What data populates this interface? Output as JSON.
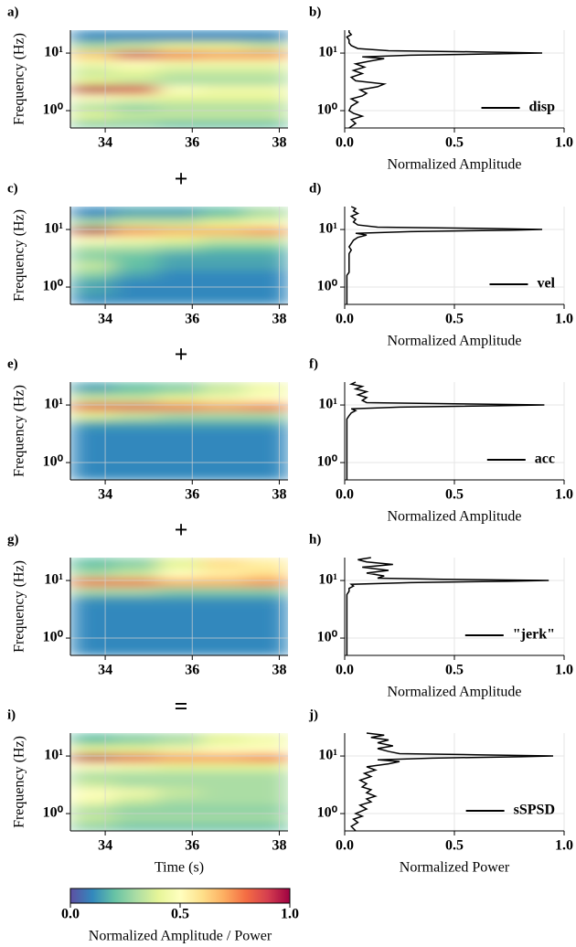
{
  "operators": [
    "+",
    "+",
    "+",
    "="
  ],
  "chart_data": [
    {
      "type": "heatmap",
      "label": "a)",
      "ylabel": "Frequency (Hz)",
      "ylog": true,
      "grid": true,
      "xlim": [
        33.2,
        38.2
      ],
      "ylim": [
        0.5,
        25
      ],
      "xticks": [
        34,
        36,
        38
      ],
      "yticks": [
        {
          "value": 1,
          "label": "10⁰"
        },
        {
          "value": 10,
          "label": "10¹"
        }
      ],
      "x_edges": [
        33.2,
        34.2,
        35.2,
        36.2,
        37.2,
        38.2
      ],
      "y_edges": [
        0.5,
        0.7,
        1,
        1.4,
        2,
        2.8,
        4,
        5.6,
        8,
        11,
        16,
        25
      ],
      "z": [
        [
          0.25,
          0.25,
          0.2,
          0.2,
          0.2
        ],
        [
          0.4,
          0.35,
          0.35,
          0.35,
          0.35
        ],
        [
          0.3,
          0.25,
          0.3,
          0.3,
          0.3
        ],
        [
          0.5,
          0.45,
          0.4,
          0.4,
          0.4
        ],
        [
          0.95,
          0.9,
          0.5,
          0.45,
          0.45
        ],
        [
          0.4,
          0.35,
          0.3,
          0.3,
          0.3
        ],
        [
          0.35,
          0.4,
          0.35,
          0.35,
          0.35
        ],
        [
          0.45,
          0.5,
          0.45,
          0.45,
          0.45
        ],
        [
          0.65,
          0.9,
          0.8,
          0.75,
          0.75
        ],
        [
          0.3,
          0.35,
          0.4,
          0.4,
          0.35
        ],
        [
          0.1,
          0.1,
          0.1,
          0.1,
          0.1
        ]
      ]
    },
    {
      "type": "line",
      "label": "b)",
      "xlabel": "Normalized Amplitude",
      "ylog": true,
      "grid": true,
      "legend": "lower right",
      "xlim": [
        0,
        1
      ],
      "ylim": [
        0.5,
        25
      ],
      "xticks": [
        {
          "value": 0,
          "label": "0.0"
        },
        0.5,
        {
          "value": 1,
          "label": "1.0"
        }
      ],
      "yticks": [
        {
          "value": 1,
          "label": "10⁰"
        },
        {
          "value": 10,
          "label": "10¹"
        }
      ],
      "y": [
        0.5,
        0.6,
        0.7,
        0.8,
        0.9,
        1.0,
        1.2,
        1.4,
        1.6,
        1.8,
        2.0,
        2.3,
        2.6,
        2.9,
        3.3,
        3.8,
        4.4,
        5,
        5.7,
        6.5,
        7.3,
        8,
        8.6,
        9.2,
        9.7,
        10,
        10.5,
        11,
        12,
        13.5,
        15,
        17,
        19,
        21,
        23,
        25
      ],
      "series": [
        {
          "name": "disp",
          "color": "#000000",
          "values": [
            0.02,
            0.05,
            0.03,
            0.08,
            0.04,
            0.02,
            0.03,
            0.06,
            0.03,
            0.08,
            0.1,
            0.07,
            0.15,
            0.18,
            0.05,
            0.03,
            0.08,
            0.04,
            0.09,
            0.05,
            0.12,
            0.18,
            0.08,
            0.3,
            0.7,
            0.9,
            0.6,
            0.2,
            0.06,
            0.03,
            0.02,
            0.02,
            0.01,
            0.03,
            0.02,
            0.02
          ]
        }
      ]
    },
    {
      "type": "heatmap",
      "label": "c)",
      "ylabel": "Frequency (Hz)",
      "ylog": true,
      "grid": true,
      "xlim": [
        33.2,
        38.2
      ],
      "ylim": [
        0.5,
        25
      ],
      "xticks": [
        34,
        36,
        38
      ],
      "yticks": [
        {
          "value": 1,
          "label": "10⁰"
        },
        {
          "value": 10,
          "label": "10¹"
        }
      ],
      "x_edges": [
        33.2,
        34.2,
        35.2,
        36.2,
        37.2,
        38.2
      ],
      "y_edges": [
        0.5,
        0.7,
        1,
        1.4,
        2,
        2.8,
        4,
        5.6,
        8,
        11,
        16,
        25
      ],
      "z": [
        [
          0.1,
          0.1,
          0.1,
          0.1,
          0.1
        ],
        [
          0.15,
          0.1,
          0.1,
          0.1,
          0.1
        ],
        [
          0.15,
          0.1,
          0.1,
          0.1,
          0.1
        ],
        [
          0.25,
          0.15,
          0.1,
          0.1,
          0.1
        ],
        [
          0.35,
          0.2,
          0.15,
          0.15,
          0.15
        ],
        [
          0.25,
          0.2,
          0.15,
          0.15,
          0.15
        ],
        [
          0.3,
          0.3,
          0.25,
          0.2,
          0.2
        ],
        [
          0.5,
          0.45,
          0.4,
          0.35,
          0.35
        ],
        [
          0.95,
          0.75,
          0.7,
          0.7,
          0.75
        ],
        [
          0.3,
          0.35,
          0.35,
          0.4,
          0.45
        ],
        [
          0.1,
          0.15,
          0.15,
          0.2,
          0.3
        ]
      ]
    },
    {
      "type": "line",
      "label": "d)",
      "xlabel": "Normalized Amplitude",
      "ylog": true,
      "grid": true,
      "legend": "lower right",
      "xlim": [
        0,
        1
      ],
      "ylim": [
        0.5,
        25
      ],
      "xticks": [
        {
          "value": 0,
          "label": "0.0"
        },
        0.5,
        {
          "value": 1,
          "label": "1.0"
        }
      ],
      "yticks": [
        {
          "value": 1,
          "label": "10⁰"
        },
        {
          "value": 10,
          "label": "10¹"
        }
      ],
      "y": [
        0.5,
        0.6,
        0.7,
        0.8,
        0.9,
        1.0,
        1.2,
        1.4,
        1.6,
        1.8,
        2.0,
        2.3,
        2.6,
        2.9,
        3.3,
        3.8,
        4.4,
        5,
        5.7,
        6.5,
        7.3,
        8,
        8.6,
        9.2,
        9.7,
        10,
        10.5,
        11,
        12,
        13.5,
        15,
        17,
        19,
        21,
        23,
        25
      ],
      "series": [
        {
          "name": "vel",
          "color": "#000000",
          "values": [
            0.01,
            0.01,
            0.01,
            0.01,
            0.01,
            0.01,
            0.01,
            0.01,
            0.01,
            0.02,
            0.02,
            0.02,
            0.02,
            0.02,
            0.02,
            0.02,
            0.03,
            0.02,
            0.03,
            0.04,
            0.06,
            0.1,
            0.05,
            0.3,
            0.75,
            0.9,
            0.6,
            0.15,
            0.06,
            0.04,
            0.05,
            0.03,
            0.06,
            0.04,
            0.05,
            0.03
          ]
        }
      ]
    },
    {
      "type": "heatmap",
      "label": "e)",
      "ylabel": "Frequency (Hz)",
      "ylog": true,
      "grid": true,
      "xlim": [
        33.2,
        38.2
      ],
      "ylim": [
        0.5,
        25
      ],
      "xticks": [
        34,
        36,
        38
      ],
      "yticks": [
        {
          "value": 1,
          "label": "10⁰"
        },
        {
          "value": 10,
          "label": "10¹"
        }
      ],
      "x_edges": [
        33.2,
        34.2,
        35.2,
        36.2,
        37.2,
        38.2
      ],
      "y_edges": [
        0.5,
        0.7,
        1,
        1.4,
        2,
        2.8,
        4,
        5.6,
        8,
        11,
        16,
        25
      ],
      "z": [
        [
          0.1,
          0.1,
          0.1,
          0.1,
          0.1
        ],
        [
          0.1,
          0.1,
          0.1,
          0.1,
          0.1
        ],
        [
          0.1,
          0.1,
          0.1,
          0.1,
          0.1
        ],
        [
          0.1,
          0.1,
          0.1,
          0.1,
          0.1
        ],
        [
          0.1,
          0.1,
          0.1,
          0.1,
          0.1
        ],
        [
          0.1,
          0.1,
          0.1,
          0.1,
          0.1
        ],
        [
          0.15,
          0.15,
          0.15,
          0.15,
          0.15
        ],
        [
          0.4,
          0.35,
          0.3,
          0.3,
          0.3
        ],
        [
          0.85,
          0.85,
          0.8,
          0.75,
          0.8
        ],
        [
          0.35,
          0.35,
          0.4,
          0.45,
          0.5
        ],
        [
          0.15,
          0.2,
          0.25,
          0.35,
          0.45
        ]
      ]
    },
    {
      "type": "line",
      "label": "f)",
      "xlabel": "Normalized Amplitude",
      "ylog": true,
      "grid": true,
      "legend": "lower right",
      "xlim": [
        0,
        1
      ],
      "ylim": [
        0.5,
        25
      ],
      "xticks": [
        {
          "value": 0,
          "label": "0.0"
        },
        0.5,
        {
          "value": 1,
          "label": "1.0"
        }
      ],
      "yticks": [
        {
          "value": 1,
          "label": "10⁰"
        },
        {
          "value": 10,
          "label": "10¹"
        }
      ],
      "y": [
        0.5,
        0.6,
        0.7,
        0.8,
        0.9,
        1.0,
        1.2,
        1.4,
        1.6,
        1.8,
        2.0,
        2.3,
        2.6,
        2.9,
        3.3,
        3.8,
        4.4,
        5,
        5.7,
        6.5,
        7.3,
        8,
        8.6,
        9.2,
        9.7,
        10,
        10.5,
        11,
        12,
        13.5,
        15,
        17,
        19,
        21,
        23,
        25
      ],
      "series": [
        {
          "name": "acc",
          "color": "#000000",
          "values": [
            0.01,
            0.01,
            0.01,
            0.01,
            0.01,
            0.01,
            0.01,
            0.01,
            0.01,
            0.01,
            0.01,
            0.01,
            0.01,
            0.01,
            0.01,
            0.01,
            0.01,
            0.01,
            0.01,
            0.02,
            0.03,
            0.05,
            0.03,
            0.25,
            0.7,
            0.91,
            0.5,
            0.1,
            0.08,
            0.1,
            0.06,
            0.1,
            0.05,
            0.08,
            0.03,
            0.05
          ]
        }
      ]
    },
    {
      "type": "heatmap",
      "label": "g)",
      "ylabel": "Frequency (Hz)",
      "ylog": true,
      "grid": true,
      "xlim": [
        33.2,
        38.2
      ],
      "ylim": [
        0.5,
        25
      ],
      "xticks": [
        34,
        36,
        38
      ],
      "yticks": [
        {
          "value": 1,
          "label": "10⁰"
        },
        {
          "value": 10,
          "label": "10¹"
        }
      ],
      "x_edges": [
        33.2,
        34.2,
        35.2,
        36.2,
        37.2,
        38.2
      ],
      "y_edges": [
        0.5,
        0.7,
        1,
        1.4,
        2,
        2.8,
        4,
        5.6,
        8,
        11,
        16,
        25
      ],
      "z": [
        [
          0.1,
          0.1,
          0.1,
          0.1,
          0.1
        ],
        [
          0.1,
          0.1,
          0.1,
          0.1,
          0.1
        ],
        [
          0.1,
          0.1,
          0.1,
          0.1,
          0.1
        ],
        [
          0.1,
          0.1,
          0.1,
          0.1,
          0.1
        ],
        [
          0.1,
          0.1,
          0.1,
          0.1,
          0.1
        ],
        [
          0.1,
          0.1,
          0.1,
          0.1,
          0.1
        ],
        [
          0.12,
          0.12,
          0.12,
          0.12,
          0.12
        ],
        [
          0.3,
          0.3,
          0.25,
          0.25,
          0.25
        ],
        [
          0.8,
          0.8,
          0.7,
          0.7,
          0.75
        ],
        [
          0.3,
          0.35,
          0.5,
          0.55,
          0.6
        ],
        [
          0.2,
          0.25,
          0.4,
          0.6,
          0.55
        ]
      ]
    },
    {
      "type": "line",
      "label": "h)",
      "xlabel": "Normalized Amplitude",
      "ylog": true,
      "grid": true,
      "legend": "lower right",
      "xlim": [
        0,
        1
      ],
      "ylim": [
        0.5,
        25
      ],
      "xticks": [
        {
          "value": 0,
          "label": "0.0"
        },
        0.5,
        {
          "value": 1,
          "label": "1.0"
        }
      ],
      "yticks": [
        {
          "value": 1,
          "label": "10⁰"
        },
        {
          "value": 10,
          "label": "10¹"
        }
      ],
      "y": [
        0.5,
        0.6,
        0.7,
        0.8,
        0.9,
        1.0,
        1.2,
        1.4,
        1.6,
        1.8,
        2.0,
        2.3,
        2.6,
        2.9,
        3.3,
        3.8,
        4.4,
        5,
        5.7,
        6.5,
        7.3,
        8,
        8.6,
        9.2,
        9.7,
        10,
        10.5,
        11,
        12,
        13.5,
        15,
        17,
        19,
        21,
        23,
        25
      ],
      "series": [
        {
          "name": "\"jerk\"",
          "color": "#000000",
          "values": [
            0.01,
            0.01,
            0.01,
            0.01,
            0.01,
            0.01,
            0.01,
            0.01,
            0.01,
            0.01,
            0.01,
            0.01,
            0.01,
            0.01,
            0.01,
            0.01,
            0.01,
            0.01,
            0.01,
            0.02,
            0.02,
            0.04,
            0.03,
            0.3,
            0.75,
            0.93,
            0.45,
            0.15,
            0.18,
            0.1,
            0.2,
            0.08,
            0.22,
            0.1,
            0.06,
            0.12
          ]
        }
      ]
    },
    {
      "type": "heatmap",
      "label": "i)",
      "ylabel": "Frequency (Hz)",
      "xlabel": "Time (s)",
      "ylog": true,
      "grid": true,
      "xlim": [
        33.2,
        38.2
      ],
      "ylim": [
        0.5,
        25
      ],
      "xticks": [
        34,
        36,
        38
      ],
      "yticks": [
        {
          "value": 1,
          "label": "10⁰"
        },
        {
          "value": 10,
          "label": "10¹"
        }
      ],
      "x_edges": [
        33.2,
        34.2,
        35.2,
        36.2,
        37.2,
        38.2
      ],
      "y_edges": [
        0.5,
        0.7,
        1,
        1.4,
        2,
        2.8,
        4,
        5.6,
        8,
        11,
        16,
        25
      ],
      "z": [
        [
          0.25,
          0.2,
          0.2,
          0.2,
          0.2
        ],
        [
          0.35,
          0.3,
          0.3,
          0.3,
          0.3
        ],
        [
          0.3,
          0.25,
          0.25,
          0.25,
          0.25
        ],
        [
          0.45,
          0.35,
          0.3,
          0.3,
          0.3
        ],
        [
          0.5,
          0.45,
          0.35,
          0.3,
          0.3
        ],
        [
          0.35,
          0.3,
          0.3,
          0.3,
          0.3
        ],
        [
          0.3,
          0.3,
          0.3,
          0.3,
          0.3
        ],
        [
          0.5,
          0.45,
          0.4,
          0.4,
          0.4
        ],
        [
          0.95,
          0.85,
          0.75,
          0.75,
          0.8
        ],
        [
          0.4,
          0.4,
          0.45,
          0.5,
          0.5
        ],
        [
          0.2,
          0.25,
          0.3,
          0.4,
          0.45
        ]
      ]
    },
    {
      "type": "line",
      "label": "j)",
      "xlabel": "Normalized Power",
      "ylog": true,
      "grid": true,
      "legend": "lower right",
      "xlim": [
        0,
        1
      ],
      "ylim": [
        0.5,
        25
      ],
      "xticks": [
        {
          "value": 0,
          "label": "0.0"
        },
        0.5,
        {
          "value": 1,
          "label": "1.0"
        }
      ],
      "yticks": [
        {
          "value": 1,
          "label": "10⁰"
        },
        {
          "value": 10,
          "label": "10¹"
        }
      ],
      "y": [
        0.5,
        0.6,
        0.7,
        0.8,
        0.9,
        1.0,
        1.2,
        1.4,
        1.6,
        1.8,
        2.0,
        2.3,
        2.6,
        2.9,
        3.3,
        3.8,
        4.4,
        5,
        5.7,
        6.5,
        7.3,
        8,
        8.6,
        9.2,
        9.7,
        10,
        10.5,
        11,
        12,
        13.5,
        15,
        17,
        19,
        21,
        23,
        25
      ],
      "series": [
        {
          "name": "sSPSD",
          "color": "#000000",
          "values": [
            0.05,
            0.03,
            0.06,
            0.04,
            0.08,
            0.05,
            0.1,
            0.07,
            0.12,
            0.1,
            0.14,
            0.1,
            0.12,
            0.08,
            0.1,
            0.07,
            0.12,
            0.09,
            0.14,
            0.1,
            0.2,
            0.25,
            0.15,
            0.4,
            0.8,
            0.95,
            0.6,
            0.25,
            0.2,
            0.15,
            0.22,
            0.15,
            0.2,
            0.12,
            0.18,
            0.1
          ]
        }
      ]
    },
    {
      "type": "colorbar",
      "label": "Normalized Amplitude / Power",
      "clim": [
        0,
        1
      ],
      "ticks": [
        {
          "value": 0,
          "label": "0.0"
        },
        0.5,
        {
          "value": 1,
          "label": "1.0"
        }
      ],
      "colormap": [
        "#5e4fa2",
        "#3288bd",
        "#66c2a5",
        "#abdda4",
        "#e6f598",
        "#ffffbf",
        "#fee08b",
        "#fdae61",
        "#f46d43",
        "#d53e4f",
        "#9e0142"
      ]
    }
  ]
}
